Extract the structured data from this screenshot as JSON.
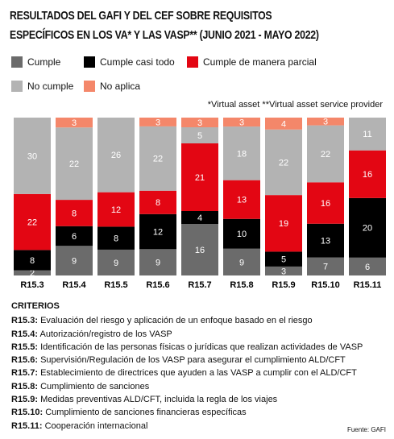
{
  "chart_data": {
    "type": "bar",
    "stacked": true,
    "normalized": true,
    "title": "RESULTADOS DEL GAFI Y DEL CEF SOBRE REQUISITOS ESPECÍFICOS EN LOS VA* Y LAS VASP** (JUNIO 2021 - MAYO 2022)",
    "note": "*Virtual asset **Virtual asset service provider",
    "categories": [
      "R15.3",
      "R15.4",
      "R15.5",
      "R15.6",
      "R15.7",
      "R15.8",
      "R15.9",
      "R15.10",
      "R15.11"
    ],
    "series": [
      {
        "name": "Cumple",
        "color": "#6b6b6b",
        "values": [
          2,
          9,
          9,
          9,
          16,
          9,
          3,
          7,
          6
        ]
      },
      {
        "name": "Cumple casi todo",
        "color": "#000000",
        "values": [
          8,
          6,
          8,
          12,
          4,
          10,
          5,
          13,
          20
        ]
      },
      {
        "name": "Cumple de manera parcial",
        "color": "#e30613",
        "values": [
          22,
          8,
          12,
          8,
          21,
          13,
          19,
          16,
          16
        ]
      },
      {
        "name": "No cumple",
        "color": "#b3b3b3",
        "values": [
          30,
          22,
          26,
          22,
          5,
          18,
          22,
          22,
          11
        ]
      },
      {
        "name": "No aplica",
        "color": "#f4876a",
        "values": [
          null,
          3,
          null,
          3,
          3,
          3,
          4,
          3,
          null
        ]
      }
    ],
    "criteria_title": "CRITERIOS",
    "criteria": [
      {
        "code": "R15.3:",
        "text": "Evaluación del riesgo y aplicación de un enfoque basado en el riesgo"
      },
      {
        "code": "R15.4:",
        "text": "Autorización/registro de los VASP"
      },
      {
        "code": "R15.5:",
        "text": "Identificación de las personas físicas o jurídicas que realizan actividades de VASP"
      },
      {
        "code": "R15.6:",
        "text": "Supervisión/Regulación de los VASP para asegurar el cumplimiento ALD/CFT"
      },
      {
        "code": "R15.7:",
        "text": "Establecimiento de directrices que ayuden a las VASP a cumplir con el ALD/CFT"
      },
      {
        "code": "R15.8:",
        "text": "Cumplimiento de sanciones"
      },
      {
        "code": "R15.9:",
        "text": "Medidas preventivas ALD/CFT, incluida la regla de los viajes"
      },
      {
        "code": "R15.10:",
        "text": "Cumplimiento de sanciones financieras específicas"
      },
      {
        "code": "R15.11:",
        "text": "Cooperación internacional"
      }
    ],
    "source": "Fuente: GAFI"
  }
}
